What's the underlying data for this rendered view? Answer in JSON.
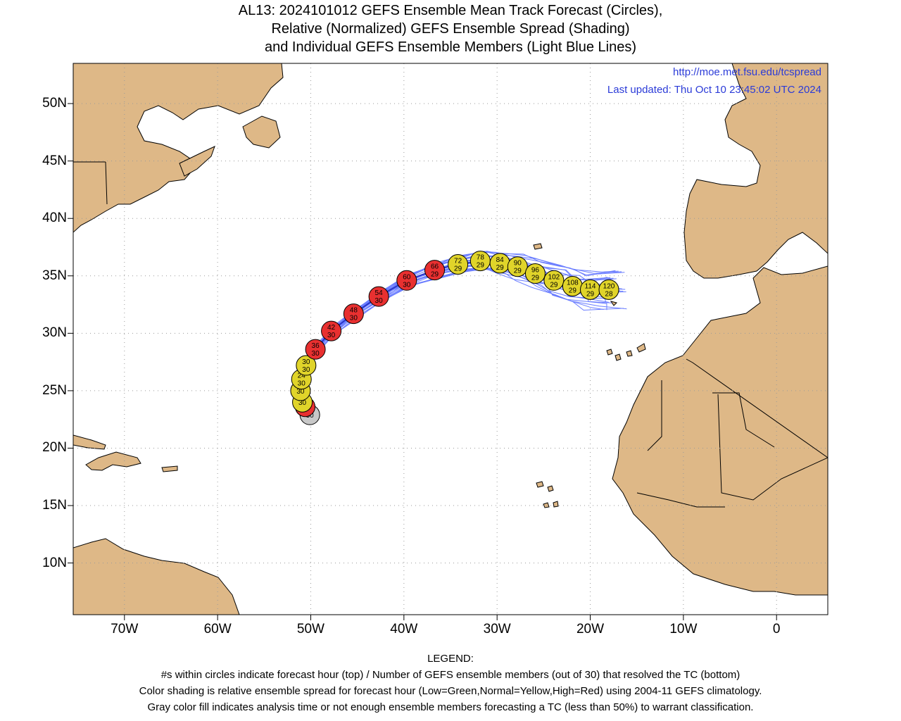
{
  "title": {
    "line1": "AL13: 2024101012 GEFS Ensemble Mean Track Forecast (Circles),",
    "line2": "Relative (Normalized) GEFS Ensemble Spread (Shading)",
    "line3": "and Individual GEFS Ensemble Members (Light Blue Lines)"
  },
  "info": {
    "url": "http://moe.met.fsu.edu/tcspread",
    "updated": "Last updated: Thu Oct 10 23:45:02 UTC 2024"
  },
  "axes": {
    "lat_labels": [
      "50N",
      "45N",
      "40N",
      "35N",
      "30N",
      "25N",
      "20N",
      "15N",
      "10N"
    ],
    "lon_labels": [
      "70W",
      "60W",
      "50W",
      "40W",
      "30W",
      "20W",
      "10W",
      "0"
    ]
  },
  "colors": {
    "land": "#deb887",
    "ocean": "#ffffff",
    "member_lines": "#6a7dff",
    "mean_track": "#2a36c8",
    "red": "#e83030",
    "yellow": "#e0d42a",
    "gray": "#c8c8c8"
  },
  "map_extent": {
    "lon": [
      -75.5,
      5.5
    ],
    "lat": [
      5.5,
      53.5
    ]
  },
  "track_points": [
    {
      "hour": "",
      "members": "30",
      "lat": 22.9,
      "lon": -50.1,
      "color": "gray"
    },
    {
      "hour": "",
      "members": "30",
      "lat": 23.6,
      "lon": -50.6,
      "color": "red"
    },
    {
      "hour": "",
      "members": "30",
      "lat": 24.0,
      "lon": -50.9,
      "color": "yellow"
    },
    {
      "hour": "",
      "members": "30",
      "lat": 25.0,
      "lon": -51.1,
      "color": "yellow"
    },
    {
      "hour": "24",
      "members": "30",
      "lat": 26.0,
      "lon": -51.0,
      "color": "yellow"
    },
    {
      "hour": "30",
      "members": "30",
      "lat": 27.2,
      "lon": -50.5,
      "color": "yellow"
    },
    {
      "hour": "36",
      "members": "30",
      "lat": 28.6,
      "lon": -49.5,
      "color": "red"
    },
    {
      "hour": "42",
      "members": "30",
      "lat": 30.2,
      "lon": -47.8,
      "color": "red"
    },
    {
      "hour": "48",
      "members": "30",
      "lat": 31.7,
      "lon": -45.4,
      "color": "red"
    },
    {
      "hour": "54",
      "members": "30",
      "lat": 33.2,
      "lon": -42.7,
      "color": "red"
    },
    {
      "hour": "60",
      "members": "30",
      "lat": 34.6,
      "lon": -39.7,
      "color": "red"
    },
    {
      "hour": "66",
      "members": "29",
      "lat": 35.5,
      "lon": -36.7,
      "color": "red"
    },
    {
      "hour": "72",
      "members": "29",
      "lat": 36.0,
      "lon": -34.2,
      "color": "yellow"
    },
    {
      "hour": "78",
      "members": "29",
      "lat": 36.3,
      "lon": -31.8,
      "color": "yellow"
    },
    {
      "hour": "84",
      "members": "29",
      "lat": 36.1,
      "lon": -29.7,
      "color": "yellow"
    },
    {
      "hour": "90",
      "members": "29",
      "lat": 35.8,
      "lon": -27.8,
      "color": "yellow"
    },
    {
      "hour": "96",
      "members": "29",
      "lat": 35.2,
      "lon": -25.9,
      "color": "yellow"
    },
    {
      "hour": "102",
      "members": "29",
      "lat": 34.6,
      "lon": -23.9,
      "color": "yellow"
    },
    {
      "hour": "108",
      "members": "29",
      "lat": 34.1,
      "lon": -21.9,
      "color": "yellow"
    },
    {
      "hour": "114",
      "members": "29",
      "lat": 33.8,
      "lon": -20.0,
      "color": "yellow"
    },
    {
      "hour": "120",
      "members": "28",
      "lat": 33.8,
      "lon": -18.0,
      "color": "yellow"
    }
  ],
  "legend": {
    "heading": "LEGEND:",
    "line1": "#s within circles indicate forecast hour (top) / Number of GEFS ensemble members (out of 30) that resolved the TC (bottom)",
    "line2": "Color shading is relative ensemble spread for forecast hour (Low=Green,Normal=Yellow,High=Red) using 2004-11 GEFS climatology.",
    "line3": "Gray color fill indicates analysis time or not enough ensemble members forecasting a TC (less than 50%) to warrant classification."
  }
}
